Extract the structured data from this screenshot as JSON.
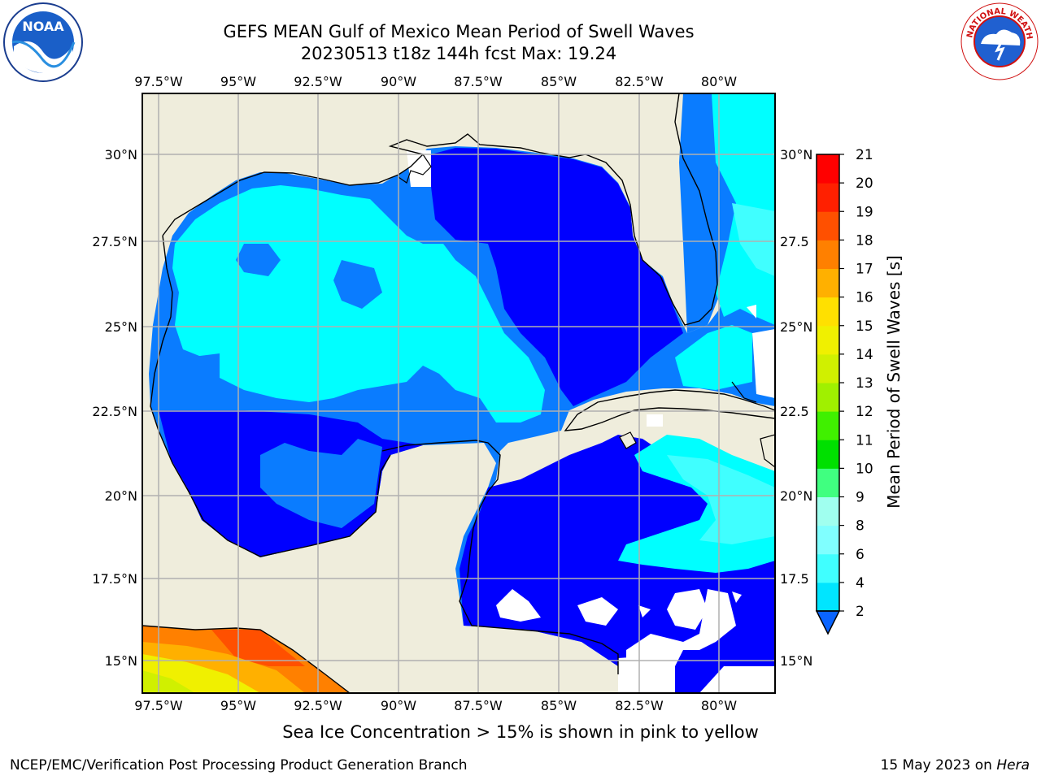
{
  "title_line1": "GEFS MEAN Gulf of Mexico Mean Period of Swell Waves",
  "title_line2": "20230513 t18z 144h fcst   Max: 19.24",
  "lon_labels": [
    "97.5°W",
    "95°W",
    "92.5°W",
    "90°W",
    "87.5°W",
    "85°W",
    "82.5°W",
    "80°W"
  ],
  "lat_labels_left": [
    "30°N",
    "27.5°N",
    "25°N",
    "22.5°N",
    "20°N",
    "17.5°N",
    "15°N"
  ],
  "lat_labels_right": [
    "30°N",
    "27.5",
    "25°N",
    "22.5",
    "20°N",
    "17.5",
    "15°N"
  ],
  "colorbar": {
    "label": "Mean Period of Swell Waves [s]",
    "ticks": [
      "2",
      "4",
      "6",
      "8",
      "9",
      "10",
      "11",
      "12",
      "13",
      "14",
      "15",
      "16",
      "17",
      "18",
      "19",
      "20",
      "21"
    ],
    "colors": [
      "#0a64ff",
      "#00e5ff",
      "#40ffff",
      "#80ffff",
      "#a0ffef",
      "#40ff80",
      "#00e000",
      "#40f000",
      "#a0f000",
      "#d0f000",
      "#f0f000",
      "#ffe000",
      "#ffb000",
      "#ff8000",
      "#ff5000",
      "#ff2000",
      "#ff0000"
    ]
  },
  "sea_ice_note": "Sea Ice Concentration > 15% is shown in pink to yellow",
  "footer_left": "NCEP/EMC/Verification Post Processing Product Generation Branch",
  "footer_right_prefix": "15 May 2023 on ",
  "footer_right_host": "Hera",
  "logos": {
    "noaa_text": "NOAA",
    "nws_text": "NATIONAL WEATHER SERVICE"
  },
  "colors": {
    "land": "#efeddc",
    "deep_blue": "#0000ff",
    "mid_blue": "#0a7cff",
    "cyan": "#00ffff",
    "light_cyan": "#40ffff",
    "grid": "#b0b0b0"
  }
}
